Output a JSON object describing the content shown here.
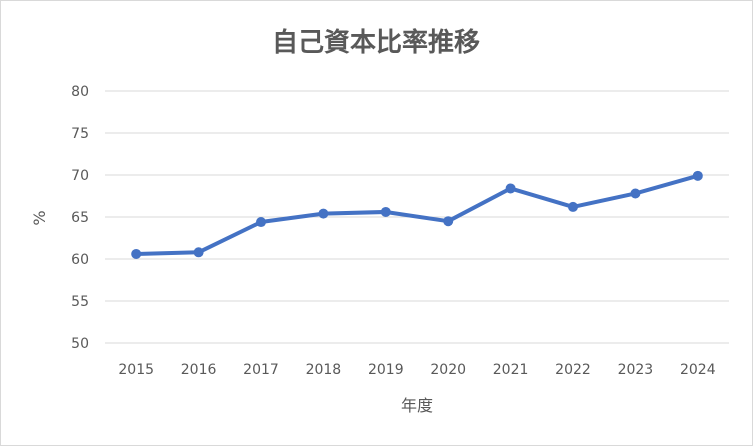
{
  "chart_data": {
    "type": "line",
    "title": "自己資本比率推移",
    "xlabel": "年度",
    "ylabel": "%",
    "categories": [
      "2015",
      "2016",
      "2017",
      "2018",
      "2019",
      "2020",
      "2021",
      "2022",
      "2023",
      "2024"
    ],
    "series": [
      {
        "values": [
          60.6,
          60.8,
          64.4,
          65.4,
          65.6,
          64.5,
          68.4,
          66.2,
          67.8,
          69.9
        ],
        "color": "#4472c4"
      }
    ],
    "ylim": [
      50,
      80
    ],
    "yticks": [
      50,
      55,
      60,
      65,
      70,
      75,
      80
    ],
    "grid": true,
    "legend": "none"
  }
}
